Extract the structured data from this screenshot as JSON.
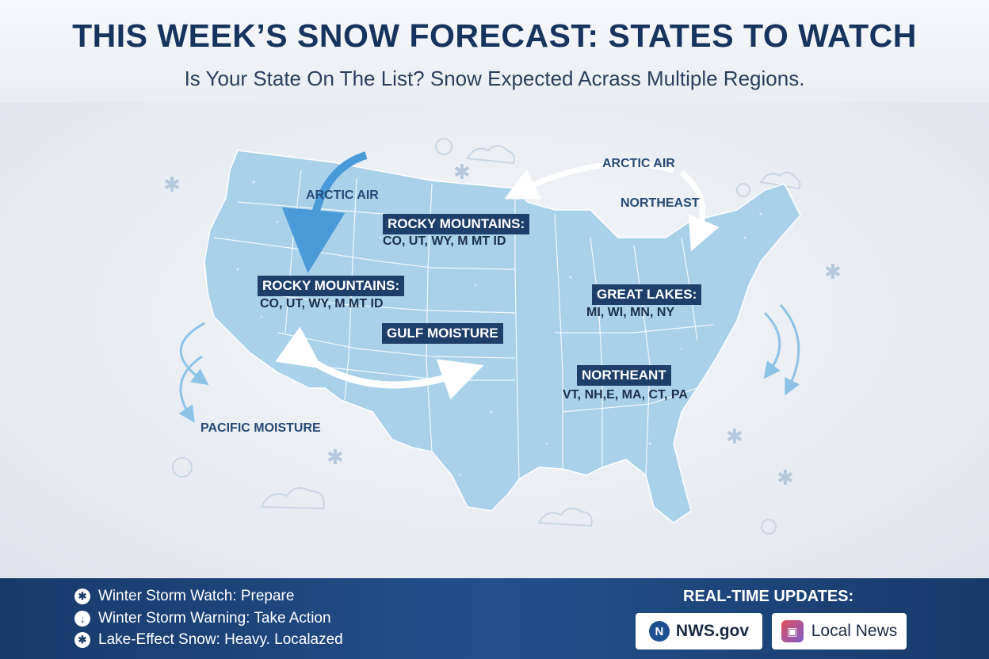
{
  "header": {
    "title": "THIS WEEK’S SNOW FORECAST: STATES TO WATCH",
    "subtitle": "Is Your State On The List? Snow Expected Acrass Multiple Regions."
  },
  "map": {
    "flows": {
      "arctic_air_west": "ARCTIC AIR",
      "arctic_air_east": "ARCTIC AIR",
      "northeast_flow": "NORTHEAST",
      "gulf_moisture": "GULF MOISTURE",
      "pacific_moisture": "PACIFIC MOISTURE"
    },
    "regions": [
      {
        "name": "ROCKY MOUNTAINS:",
        "states": "CO, UT, WY, M MT ID"
      },
      {
        "name": "ROCKY MOUNTAINS:",
        "states": "CO, UT, WY, M MT ID"
      },
      {
        "name": "GREAT LAKES:",
        "states": "MI, WI, MN, NY"
      },
      {
        "name": "NORTHEANT",
        "states": "VT, NH,E, MA, CT, PA"
      }
    ],
    "colors": {
      "land": "#a9d1ea",
      "arrow_blue": "#4a9ad8",
      "arrow_white": "#ffffff",
      "label_bg": "#1f3f6b"
    }
  },
  "footer": {
    "legend": [
      {
        "icon": "snowflake-icon",
        "text": "Winter Storm Watch: Prepare"
      },
      {
        "icon": "down-arrow-icon",
        "text": "Winter Storm Warning: Take Action"
      },
      {
        "icon": "snowflake-icon",
        "text": "Lake-Effect Snow: Heavy. Localazed"
      }
    ],
    "updates_title": "REAL-TIME UPDATES:",
    "sources": [
      {
        "label": "NWS.gov",
        "icon": "nws-logo-icon"
      },
      {
        "label": "Local News",
        "icon": "news-app-icon"
      }
    ]
  }
}
